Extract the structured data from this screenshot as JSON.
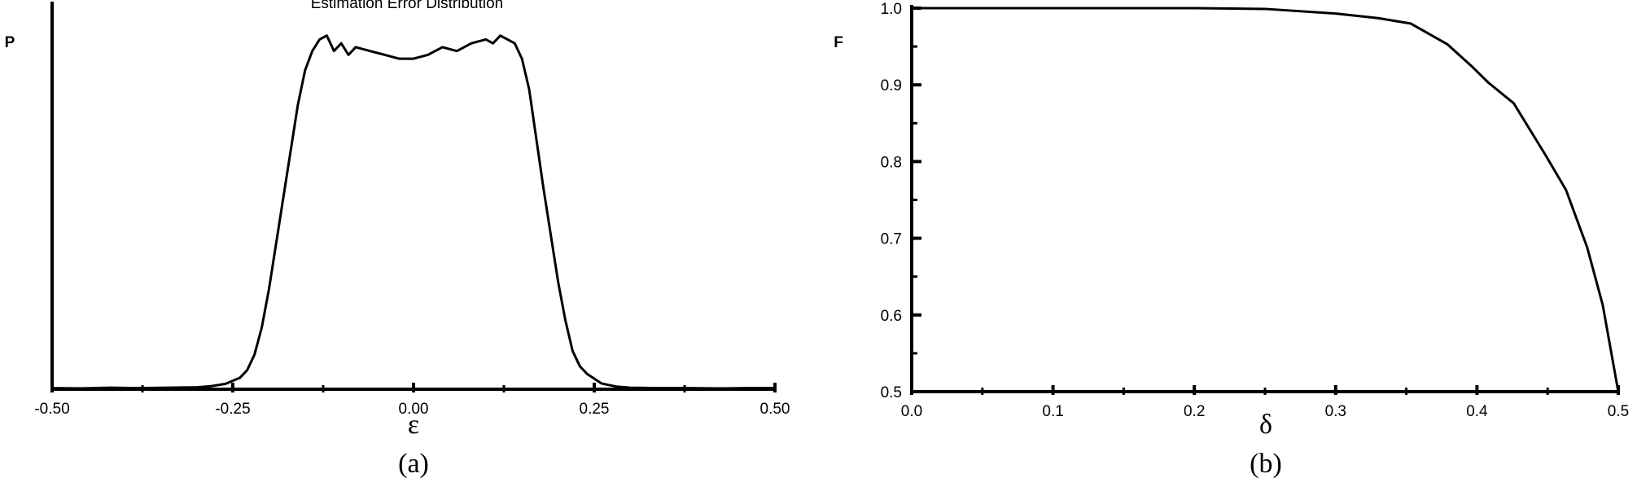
{
  "chart_data": [
    {
      "type": "line",
      "title": "Estimation Error Distribution",
      "xlabel": "ε",
      "ylabel": "P",
      "caption": "(a)",
      "x": [
        -0.5,
        -0.46,
        -0.42,
        -0.38,
        -0.34,
        -0.3,
        -0.28,
        -0.26,
        -0.24,
        -0.23,
        -0.22,
        -0.21,
        -0.2,
        -0.19,
        -0.18,
        -0.17,
        -0.16,
        -0.15,
        -0.14,
        -0.13,
        -0.12,
        -0.11,
        -0.1,
        -0.09,
        -0.08,
        -0.06,
        -0.04,
        -0.02,
        0,
        0.02,
        0.04,
        0.06,
        0.08,
        0.1,
        0.11,
        0.12,
        0.13,
        0.14,
        0.15,
        0.16,
        0.17,
        0.18,
        0.19,
        0.2,
        0.21,
        0.22,
        0.23,
        0.24,
        0.26,
        0.28,
        0.3,
        0.34,
        0.38,
        0.42,
        0.46,
        0.5
      ],
      "values": [
        0.003,
        0.002,
        0.004,
        0.003,
        0.004,
        0.005,
        0.008,
        0.014,
        0.03,
        0.05,
        0.09,
        0.16,
        0.26,
        0.38,
        0.5,
        0.62,
        0.74,
        0.83,
        0.88,
        0.91,
        0.92,
        0.88,
        0.9,
        0.87,
        0.89,
        0.88,
        0.87,
        0.86,
        0.86,
        0.87,
        0.89,
        0.88,
        0.9,
        0.91,
        0.9,
        0.92,
        0.91,
        0.9,
        0.86,
        0.78,
        0.65,
        0.52,
        0.4,
        0.28,
        0.18,
        0.1,
        0.06,
        0.04,
        0.015,
        0.007,
        0.004,
        0.003,
        0.003,
        0.002,
        0.003,
        0.003
      ],
      "xlim": [
        -0.5,
        0.5
      ],
      "ylim": [
        0,
        1
      ],
      "xticks": [
        {
          "value": -0.5,
          "label": "-0.50"
        },
        -0.25,
        {
          "value": 0,
          "label": "0.00"
        },
        0.25,
        {
          "value": 0.5,
          "label": "0.50"
        }
      ],
      "xminorticks": [
        -0.375,
        -0.125,
        0.125,
        0.375
      ],
      "color": "#000000"
    },
    {
      "type": "line",
      "xlabel": "δ",
      "ylabel": "F",
      "caption": "(b)",
      "x": [
        0,
        0.1,
        0.2,
        0.25,
        0.3,
        0.33,
        0.353,
        0.379,
        0.397,
        0.408,
        0.426,
        0.448,
        0.463,
        0.478,
        0.489,
        0.5
      ],
      "values": [
        1,
        1,
        1,
        0.999,
        0.993,
        0.987,
        0.98,
        0.953,
        0.923,
        0.903,
        0.876,
        0.81,
        0.763,
        0.688,
        0.613,
        0.5
      ],
      "xlim": [
        0,
        0.5
      ],
      "ylim": [
        0.5,
        1
      ],
      "xticks": [
        {
          "value": 0,
          "label": "0.0"
        },
        0.1,
        0.2,
        0.3,
        0.4,
        0.5
      ],
      "yticks": [
        0.5,
        0.6,
        0.7,
        0.8,
        0.9,
        {
          "value": 1,
          "label": "1.0"
        }
      ],
      "xminorticks": [
        0.05,
        0.15,
        0.25,
        0.35,
        0.45
      ],
      "yminorticks": [
        0.55,
        0.65,
        0.75,
        0.85,
        0.95
      ],
      "color": "#000000"
    }
  ]
}
